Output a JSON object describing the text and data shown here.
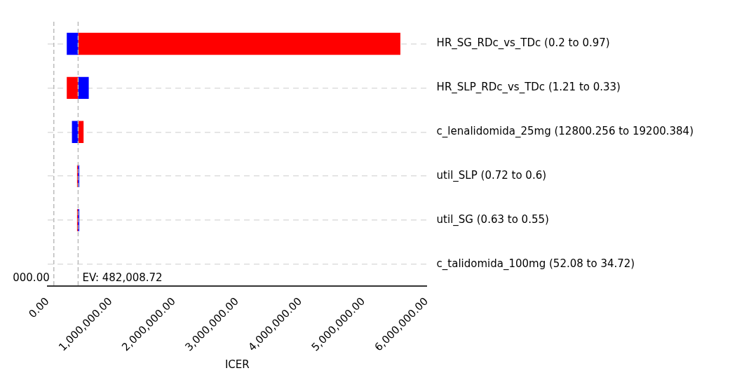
{
  "chart_data": {
    "type": "bar",
    "orientation": "horizontal",
    "xlabel": "ICER",
    "categories": [
      "HR_SG_RDc_vs_TDc (0.2 to 0.97)",
      "HR_SLP_RDc_vs_TDc (1.21 to 0.33)",
      "c_lenalidomida_25mg (12800.256 to 19200.384)",
      "util_SLP (0.72 to 0.6)",
      "util_SG (0.63 to 0.55)",
      "c_talidomida_100mg (52.08 to 34.72)"
    ],
    "series": [
      {
        "color": "#0000ff",
        "base": [
          302000,
          482008.72,
          384000,
          482008.72,
          482008.72,
          null
        ],
        "values": [
          180000,
          168000,
          98000,
          18000,
          18000,
          null
        ]
      },
      {
        "color": "#ff0000",
        "base": [
          482008.72,
          302000,
          482008.72,
          465000,
          465000,
          null
        ],
        "values": [
          5100000,
          180000,
          86000,
          17000,
          17000,
          null
        ]
      }
    ],
    "xlim": [
      0,
      6000000
    ],
    "xticks": [
      {
        "value": 0,
        "label": "0.00"
      },
      {
        "value": 1000000,
        "label": "1,000,000.00"
      },
      {
        "value": 2000000,
        "label": "2,000,000.00"
      },
      {
        "value": 3000000,
        "label": "3,000,000.00"
      },
      {
        "value": 4000000,
        "label": "4,000,000.00"
      },
      {
        "value": 5000000,
        "label": "5,000,000.00"
      },
      {
        "value": 6000000,
        "label": "6,000,000.00"
      }
    ],
    "ref_lines": [
      {
        "axis": "x",
        "value": 97000,
        "color": "#bbbbbb",
        "line_style": "dashed"
      },
      {
        "axis": "x",
        "value": 482008.72,
        "label": "EV: 482,008.72",
        "color": "#bbbbbb",
        "line_style": "dashed"
      }
    ],
    "annotations": [
      "000.00"
    ],
    "grid": "y",
    "legend": false
  }
}
